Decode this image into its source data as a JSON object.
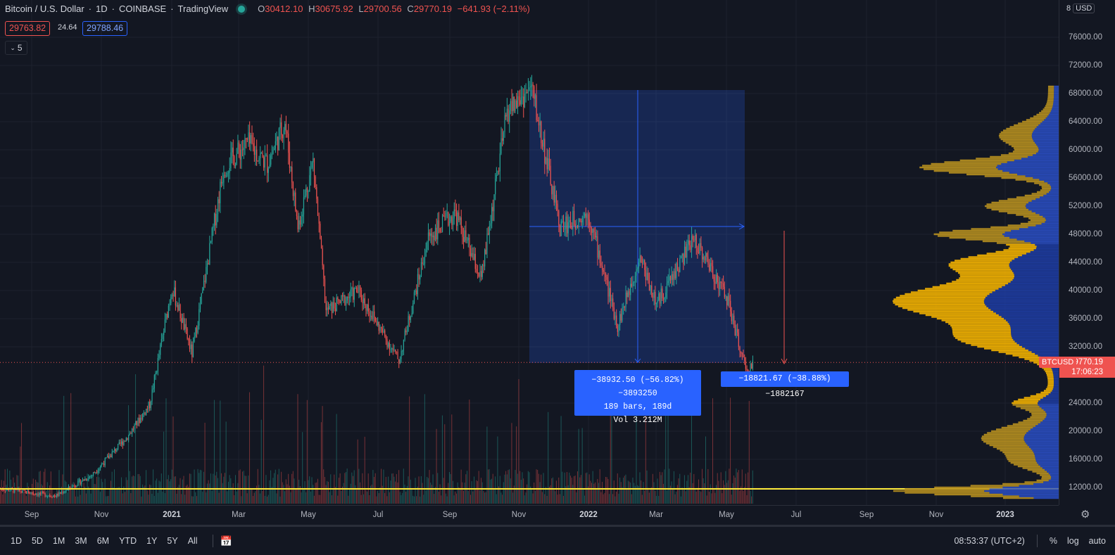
{
  "header": {
    "symbol": "Bitcoin / U.S. Dollar",
    "interval": "1D",
    "exchange": "COINBASE",
    "platform": "TradingView",
    "open_label": "O",
    "open": "30412.10",
    "high_label": "H",
    "high": "30675.92",
    "low_label": "L",
    "low": "29700.56",
    "close_label": "C",
    "close": "29770.19",
    "change": "−641.93 (−2.11%)",
    "bid": "29763.82",
    "spread": "24.64",
    "ask": "29788.46",
    "indicators_count": "5"
  },
  "currency_menu": {
    "prefix": "8",
    "label": "USD"
  },
  "price_axis": {
    "ticks": [
      "76000.00",
      "72000.00",
      "68000.00",
      "64000.00",
      "60000.00",
      "56000.00",
      "52000.00",
      "48000.00",
      "44000.00",
      "40000.00",
      "36000.00",
      "32000.00",
      "24000.00",
      "20000.00",
      "16000.00",
      "12000.00"
    ],
    "current_symbol": "BTCUSD",
    "current_price": "29770.19",
    "countdown": "17:06:23"
  },
  "time_axis": {
    "ticks": [
      "Sep",
      "Nov",
      "2021",
      "Mar",
      "May",
      "Jul",
      "Sep",
      "Nov",
      "2022",
      "Mar",
      "May",
      "Jul",
      "Sep",
      "Nov",
      "2023"
    ]
  },
  "measure_tools": [
    {
      "line1": "−38932.50 (−56.82%) −3893250",
      "line2": "189 bars, 189d",
      "line3": "Vol 3.212M"
    },
    {
      "line1": "−18821.67 (−38.88%) −1882167"
    }
  ],
  "bottom_bar": {
    "ranges": [
      "1D",
      "5D",
      "1M",
      "3M",
      "6M",
      "YTD",
      "1Y",
      "5Y",
      "All"
    ],
    "clock": "08:53:37 (UTC+2)",
    "percent": "%",
    "log": "log",
    "auto": "auto"
  },
  "chart_data": {
    "type": "candlestick",
    "title": "Bitcoin / U.S. Dollar 1D COINBASE",
    "x_range": [
      "2020-08",
      "2023-01"
    ],
    "ylim": [
      10000,
      78000
    ],
    "price_path": [
      {
        "x": "2020-08-15",
        "y": 11800
      },
      {
        "x": "2020-10-01",
        "y": 10800
      },
      {
        "x": "2020-11-01",
        "y": 13800
      },
      {
        "x": "2020-12-01",
        "y": 19200
      },
      {
        "x": "2020-12-20",
        "y": 23800
      },
      {
        "x": "2021-01-08",
        "y": 40500
      },
      {
        "x": "2021-01-25",
        "y": 31000
      },
      {
        "x": "2021-02-21",
        "y": 57500
      },
      {
        "x": "2021-03-13",
        "y": 61000
      },
      {
        "x": "2021-03-30",
        "y": 58000
      },
      {
        "x": "2021-04-14",
        "y": 64000
      },
      {
        "x": "2021-04-25",
        "y": 49000
      },
      {
        "x": "2021-05-08",
        "y": 58500
      },
      {
        "x": "2021-05-19",
        "y": 37000
      },
      {
        "x": "2021-06-15",
        "y": 40000
      },
      {
        "x": "2021-07-20",
        "y": 30000
      },
      {
        "x": "2021-08-14",
        "y": 47500
      },
      {
        "x": "2021-09-06",
        "y": 51000
      },
      {
        "x": "2021-09-28",
        "y": 41500
      },
      {
        "x": "2021-10-20",
        "y": 65500
      },
      {
        "x": "2021-11-10",
        "y": 68700
      },
      {
        "x": "2021-12-04",
        "y": 49000
      },
      {
        "x": "2021-12-28",
        "y": 51000
      },
      {
        "x": "2022-01-22",
        "y": 35000
      },
      {
        "x": "2022-02-10",
        "y": 45000
      },
      {
        "x": "2022-02-24",
        "y": 38000
      },
      {
        "x": "2022-03-28",
        "y": 47500
      },
      {
        "x": "2022-04-25",
        "y": 39000
      },
      {
        "x": "2022-05-12",
        "y": 28000
      },
      {
        "x": "2022-05-17",
        "y": 29770
      }
    ],
    "current_price": 29770.19,
    "horizontal_line": 12000,
    "volume_profile": "visible range, right-aligned"
  }
}
